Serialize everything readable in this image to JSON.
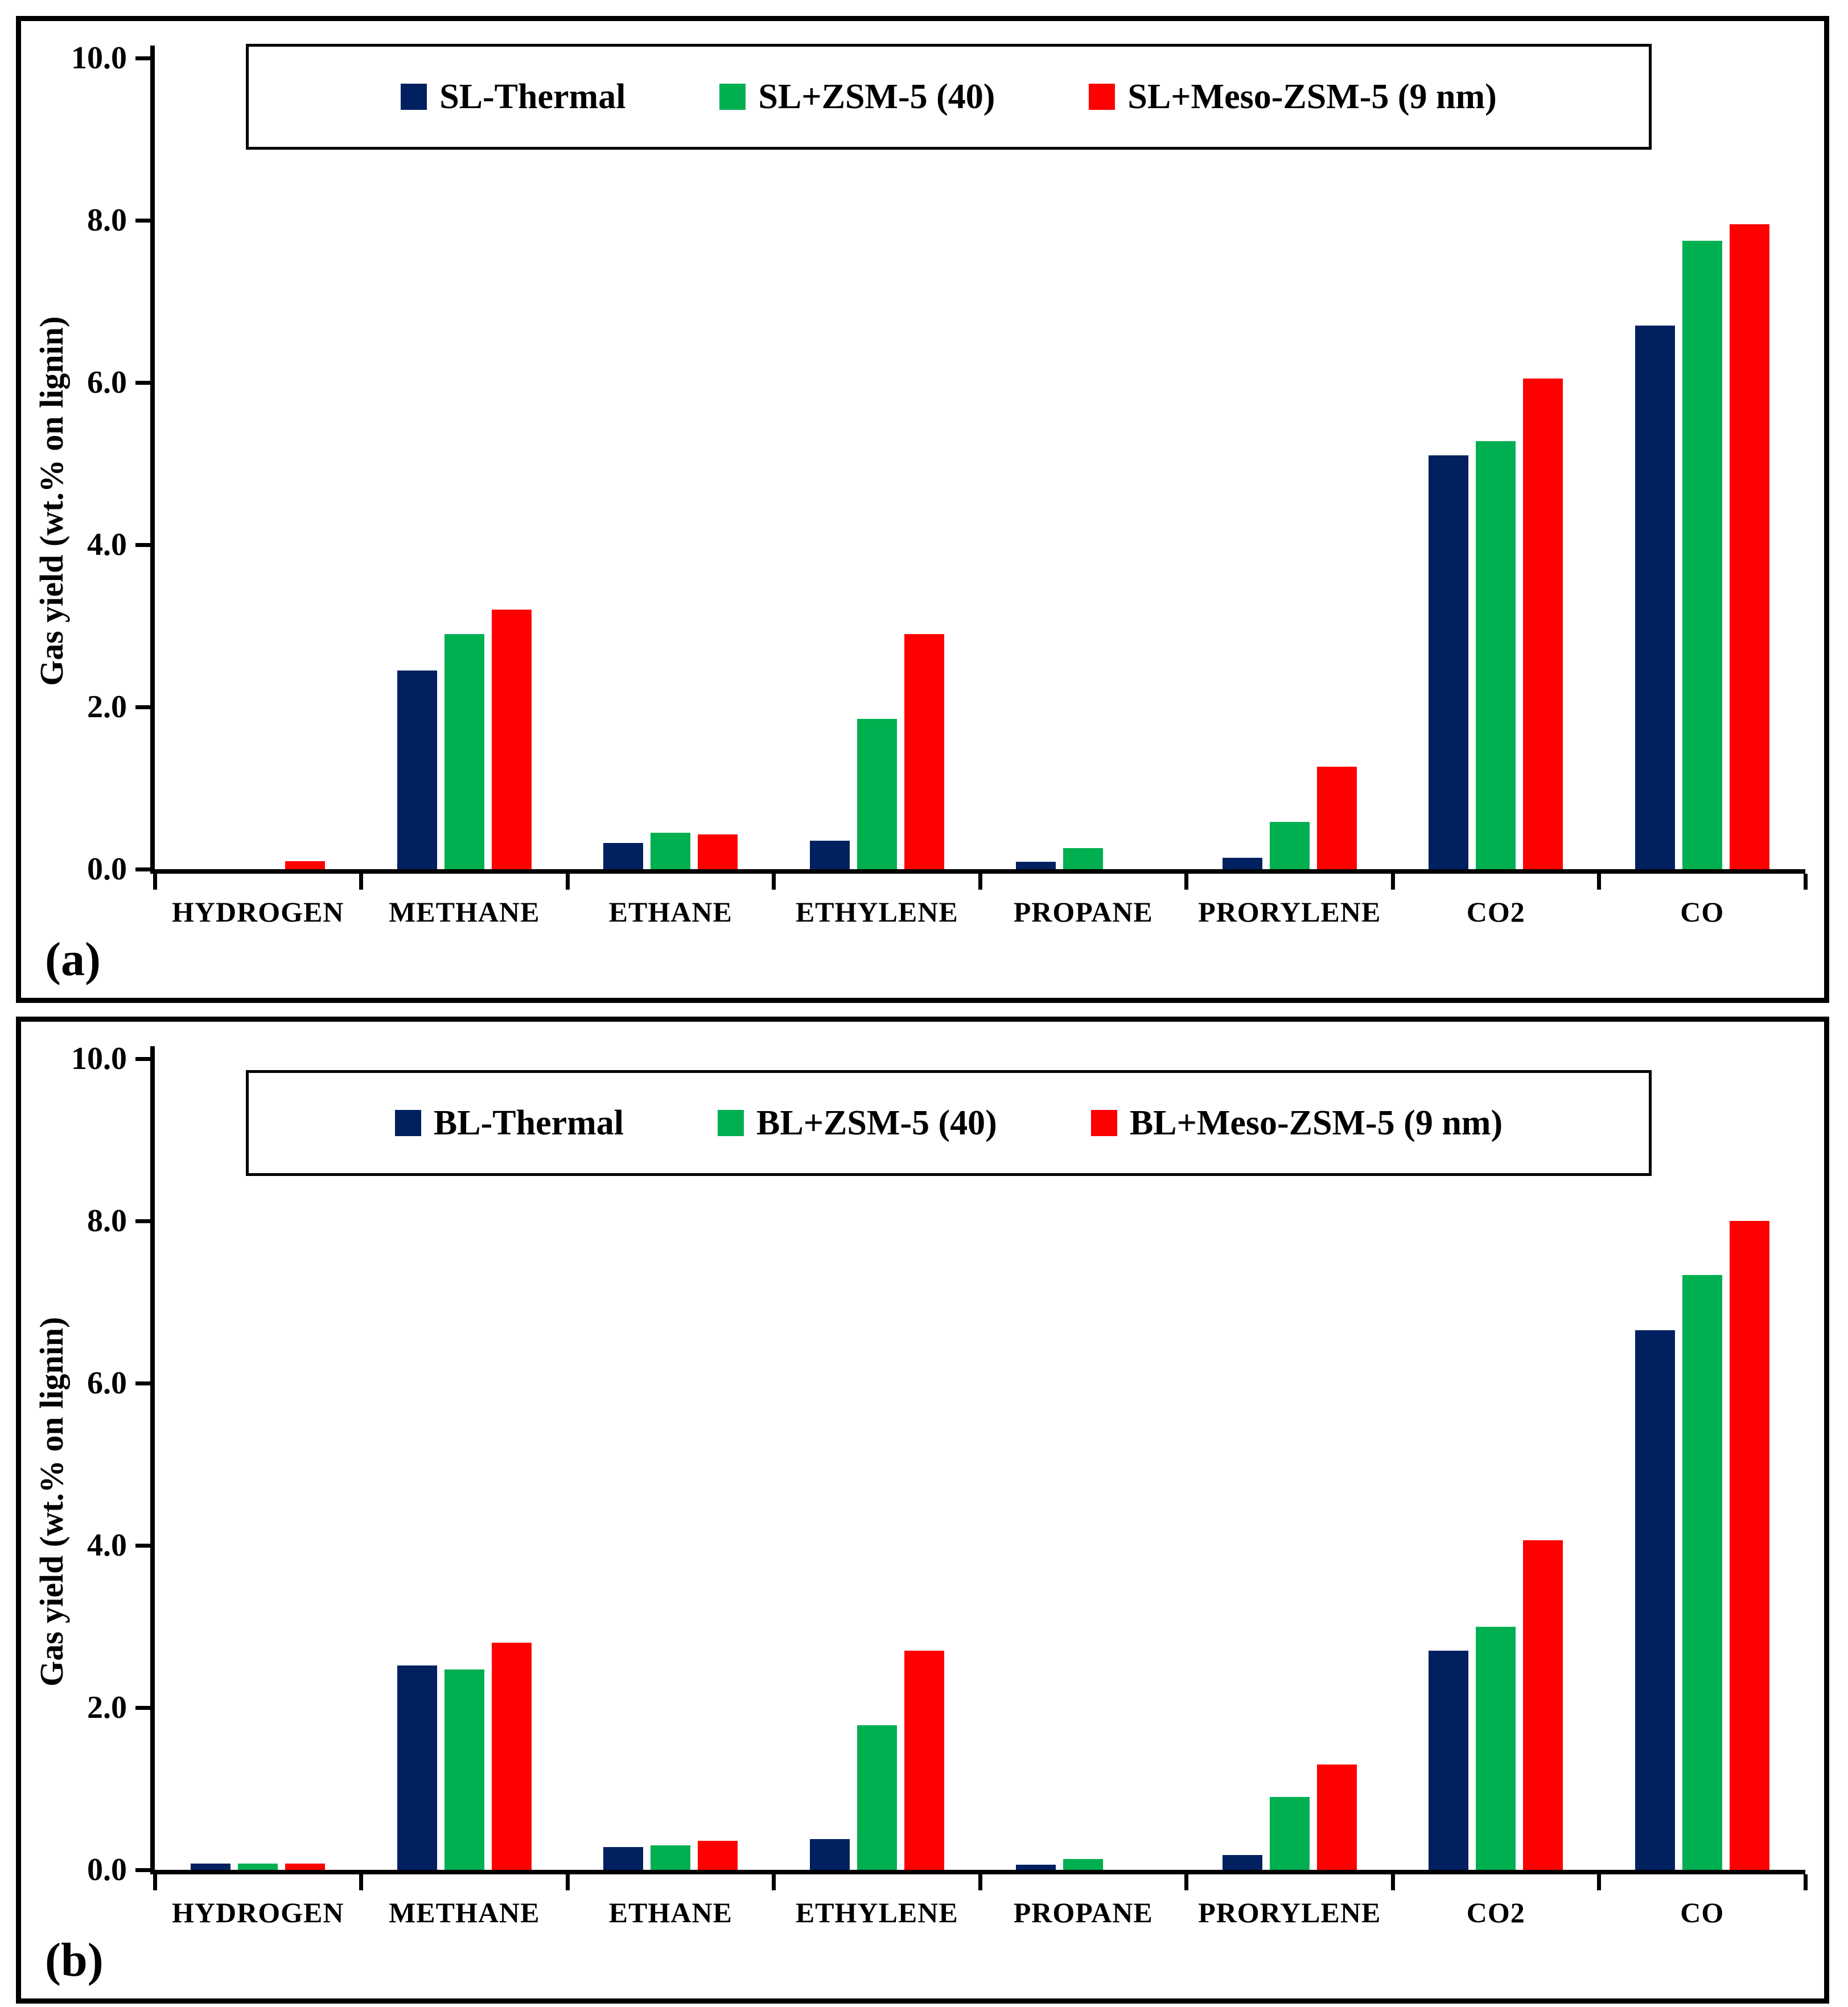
{
  "figure": {
    "background": "#ffffff",
    "border_color": "#000000",
    "panel_letters": [
      "(a)",
      "(b)"
    ]
  },
  "axis": {
    "ylabel": "Gas yield (wt.% on lignin)",
    "ylim": [
      0,
      10
    ],
    "ytick_step": 2,
    "ytick_labels": [
      "0.0",
      "2.0",
      "4.0",
      "6.0",
      "8.0",
      "10.0"
    ]
  },
  "colors": {
    "series1": "#002060",
    "series2": "#00B050",
    "series3": "#FF0000",
    "axis": "#000000"
  },
  "chart_data": [
    {
      "type": "bar",
      "panel_label": "(a)",
      "ylabel": "Gas yield (wt.% on lignin)",
      "ylim": [
        0,
        10
      ],
      "ytick_labels": [
        "0.0",
        "2.0",
        "4.0",
        "6.0",
        "8.0",
        "10.0"
      ],
      "grid": false,
      "legend_position": "top-center",
      "categories": [
        "HYDROGEN",
        "METHANE",
        "ETHANE",
        "ETHYLENE",
        "PROPANE",
        "PRORYLENE",
        "CO2",
        "CO"
      ],
      "series": [
        {
          "name": "SL-Thermal",
          "color": "#002060",
          "values": [
            0.0,
            2.45,
            0.32,
            0.35,
            0.09,
            0.14,
            5.1,
            6.7
          ]
        },
        {
          "name": "SL+ZSM-5 (40)",
          "color": "#00B050",
          "values": [
            0.0,
            2.9,
            0.45,
            1.85,
            0.26,
            0.58,
            5.28,
            7.75
          ]
        },
        {
          "name": "SL+Meso-ZSM-5 (9 nm)",
          "color": "#FF0000",
          "values": [
            0.1,
            3.2,
            0.43,
            2.9,
            0.0,
            1.26,
            6.05,
            7.95
          ]
        }
      ]
    },
    {
      "type": "bar",
      "panel_label": "(b)",
      "ylabel": "Gas yield (wt.% on lignin)",
      "ylim": [
        0,
        10
      ],
      "ytick_labels": [
        "0.0",
        "2.0",
        "4.0",
        "6.0",
        "8.0",
        "10.0"
      ],
      "grid": false,
      "legend_position": "top-center",
      "categories": [
        "HYDROGEN",
        "METHANE",
        "ETHANE",
        "ETHYLENE",
        "PROPANE",
        "PRORYLENE",
        "CO2",
        "CO"
      ],
      "series": [
        {
          "name": "BL-Thermal",
          "color": "#002060",
          "values": [
            0.08,
            2.52,
            0.28,
            0.38,
            0.06,
            0.18,
            2.7,
            6.65
          ]
        },
        {
          "name": "BL+ZSM-5 (40)",
          "color": "#00B050",
          "values": [
            0.08,
            2.47,
            0.3,
            1.78,
            0.13,
            0.9,
            3.0,
            7.33
          ]
        },
        {
          "name": "BL+Meso-ZSM-5 (9 nm)",
          "color": "#FF0000",
          "values": [
            0.08,
            2.8,
            0.36,
            2.7,
            0.0,
            1.3,
            4.06,
            8.0
          ]
        }
      ]
    }
  ]
}
